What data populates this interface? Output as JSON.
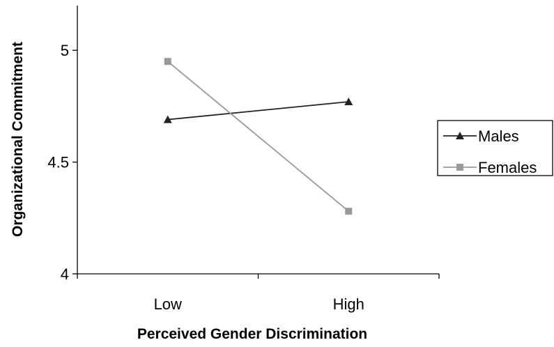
{
  "chart_data": {
    "type": "line",
    "categories": [
      "Low",
      "High"
    ],
    "series": [
      {
        "name": "Males",
        "values": [
          4.69,
          4.77
        ],
        "color": "#222222",
        "marker": "triangle"
      },
      {
        "name": "Females",
        "values": [
          4.95,
          4.28
        ],
        "color": "#999999",
        "marker": "square"
      }
    ],
    "xlabel": "Perceived Gender Discrimination",
    "ylabel": "Organizational Commitment",
    "ylim": [
      4,
      5.2
    ],
    "yticks": [
      4,
      4.5,
      5
    ],
    "ytick_labels": [
      "4",
      "4.5",
      "5"
    ],
    "grid": false,
    "legend": "right"
  }
}
